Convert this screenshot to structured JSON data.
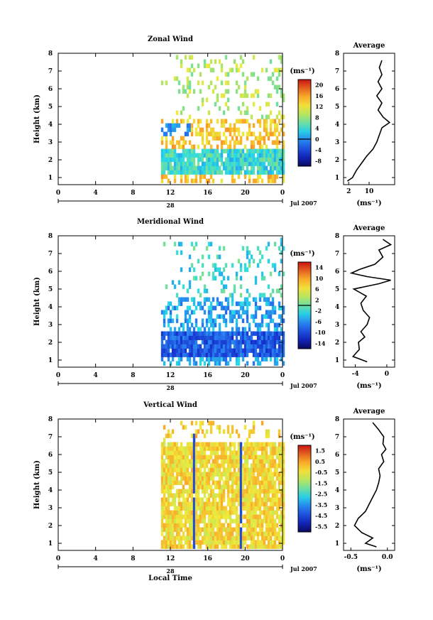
{
  "chart_data": [
    {
      "type": "heatmap",
      "title": "Zonal Wind",
      "ylabel": "Height (km)",
      "xlim": [
        0,
        24
      ],
      "ylim": [
        0.6,
        8.0
      ],
      "x_ticks": [
        "0",
        "4",
        "8",
        "12",
        "16",
        "20",
        "0"
      ],
      "y_ticks": [
        "1",
        "2",
        "3",
        "4",
        "5",
        "6",
        "7",
        "8"
      ],
      "date_day": "28",
      "date_label": "Jul 2007",
      "data_start_hour": 11.0,
      "colorbar": {
        "unit": "(ms⁻¹)",
        "range": [
          -10,
          22
        ],
        "tick_labels": [
          "20",
          "16",
          "12",
          "8",
          "4",
          "0",
          "-4",
          "-8"
        ],
        "tick_values": [
          20,
          16,
          12,
          8,
          4,
          0,
          -4,
          -8
        ],
        "zero_line": 0
      },
      "field": {
        "lower_band": [
          1.0,
          2.5
        ],
        "lower_value": 4,
        "mid_band": [
          2.5,
          4.2
        ],
        "mid_value": 14,
        "upper_band": [
          4.2,
          7.5
        ],
        "upper_value": 9,
        "negative_patch": {
          "hours": [
            11,
            14
          ],
          "heights": [
            3.2,
            3.9
          ],
          "value": 0
        }
      },
      "average": {
        "title": "Average",
        "xlabel": "(ms⁻¹)",
        "xlim": [
          0,
          20
        ],
        "x_ticks": [
          "2",
          "10"
        ],
        "x_tick_values": [
          2,
          10
        ],
        "profile": [
          [
            0.8,
            1.5
          ],
          [
            1.0,
            3.5
          ],
          [
            1.4,
            5.0
          ],
          [
            1.8,
            7.0
          ],
          [
            2.2,
            9.0
          ],
          [
            2.6,
            11.5
          ],
          [
            3.0,
            13.0
          ],
          [
            3.4,
            14.0
          ],
          [
            3.8,
            15.0
          ],
          [
            4.1,
            18.0
          ],
          [
            4.4,
            15.5
          ],
          [
            4.8,
            13.5
          ],
          [
            5.2,
            15.0
          ],
          [
            5.6,
            13.0
          ],
          [
            6.0,
            15.0
          ],
          [
            6.4,
            13.5
          ],
          [
            6.8,
            15.0
          ],
          [
            7.2,
            14.0
          ],
          [
            7.6,
            15.0
          ]
        ]
      }
    },
    {
      "type": "heatmap",
      "title": "Meridional Wind",
      "ylabel": "Height (km)",
      "xlim": [
        0,
        24
      ],
      "ylim": [
        0.6,
        8.0
      ],
      "x_ticks": [
        "0",
        "4",
        "8",
        "12",
        "16",
        "20",
        "0"
      ],
      "y_ticks": [
        "1",
        "2",
        "3",
        "4",
        "5",
        "6",
        "7",
        "8"
      ],
      "date_day": "28",
      "date_label": "Jul 2007",
      "data_start_hour": 11.0,
      "colorbar": {
        "unit": "(ms⁻¹)",
        "range": [
          -16,
          16
        ],
        "tick_labels": [
          "14",
          "10",
          "6",
          "2",
          "-2",
          "-6",
          "-10",
          "-14"
        ],
        "tick_values": [
          14,
          10,
          6,
          2,
          -2,
          -6,
          -10,
          -14
        ],
        "zero_line": 0
      },
      "field": {
        "lower_band": [
          1.0,
          2.5
        ],
        "lower_value": -9,
        "mid_band": [
          2.5,
          4.5
        ],
        "mid_value": -5,
        "upper_band": [
          4.5,
          7.5
        ],
        "upper_value": -2
      },
      "average": {
        "title": "Average",
        "xlabel": "(ms⁻¹)",
        "xlim": [
          -5.5,
          1.0
        ],
        "x_ticks": [
          "-4",
          "0"
        ],
        "x_tick_values": [
          -4,
          0
        ],
        "profile": [
          [
            0.9,
            -2.5
          ],
          [
            1.2,
            -4.3
          ],
          [
            1.6,
            -3.5
          ],
          [
            2.0,
            -3.6
          ],
          [
            2.3,
            -2.8
          ],
          [
            2.6,
            -3.3
          ],
          [
            3.0,
            -2.5
          ],
          [
            3.4,
            -2.2
          ],
          [
            3.8,
            -3.0
          ],
          [
            4.2,
            -3.3
          ],
          [
            4.6,
            -2.6
          ],
          [
            5.0,
            -4.2
          ],
          [
            5.3,
            -1.0
          ],
          [
            5.5,
            0.5
          ],
          [
            5.7,
            -2.5
          ],
          [
            5.9,
            -4.5
          ],
          [
            6.1,
            -3.5
          ],
          [
            6.4,
            -1.5
          ],
          [
            6.8,
            -0.5
          ],
          [
            7.2,
            -1.0
          ],
          [
            7.5,
            0.5
          ],
          [
            7.8,
            -0.5
          ]
        ]
      }
    },
    {
      "type": "heatmap",
      "title": "Vertical Wind",
      "ylabel": "Height (km)",
      "xlabel": "Local Time",
      "xlim": [
        0,
        24
      ],
      "ylim": [
        0.6,
        8.0
      ],
      "x_ticks": [
        "0",
        "4",
        "8",
        "12",
        "16",
        "20",
        "0"
      ],
      "y_ticks": [
        "1",
        "2",
        "3",
        "4",
        "5",
        "6",
        "7",
        "8"
      ],
      "date_day": "28",
      "date_label": "Jul 2007",
      "data_start_hour": 11.0,
      "colorbar": {
        "unit": "(ms⁻¹)",
        "range": [
          -6.0,
          2.0
        ],
        "tick_labels": [
          "1.5",
          "0.5",
          "-0.5",
          "-1.5",
          "-2.5",
          "-3.5",
          "-4.5",
          "-5.5"
        ],
        "tick_values": [
          1.5,
          0.5,
          -0.5,
          -1.5,
          -2.5,
          -3.5,
          -4.5,
          -5.5
        ]
      },
      "field": {
        "lower_band": [
          0.6,
          6.6
        ],
        "lower_value": -0.3,
        "upper_band": [
          6.6,
          7.8
        ],
        "upper_value": -0.2,
        "downdraft_hours": [
          14.4,
          19.4
        ],
        "downdraft_value": -4.5
      },
      "average": {
        "title": "Average",
        "xlabel": "(ms⁻¹)",
        "xlim": [
          -0.6,
          0.1
        ],
        "x_ticks": [
          "-0.5",
          "0.0"
        ],
        "x_tick_values": [
          -0.5,
          0.0
        ],
        "profile": [
          [
            0.8,
            -0.15
          ],
          [
            1.0,
            -0.3
          ],
          [
            1.3,
            -0.2
          ],
          [
            1.6,
            -0.35
          ],
          [
            2.0,
            -0.45
          ],
          [
            2.4,
            -0.4
          ],
          [
            2.8,
            -0.3
          ],
          [
            3.2,
            -0.25
          ],
          [
            3.6,
            -0.2
          ],
          [
            4.0,
            -0.15
          ],
          [
            4.4,
            -0.12
          ],
          [
            4.8,
            -0.1
          ],
          [
            5.2,
            -0.12
          ],
          [
            5.6,
            -0.05
          ],
          [
            6.0,
            -0.08
          ],
          [
            6.3,
            -0.02
          ],
          [
            6.6,
            -0.06
          ],
          [
            7.0,
            -0.05
          ],
          [
            7.4,
            -0.12
          ],
          [
            7.8,
            -0.2
          ]
        ]
      }
    }
  ]
}
